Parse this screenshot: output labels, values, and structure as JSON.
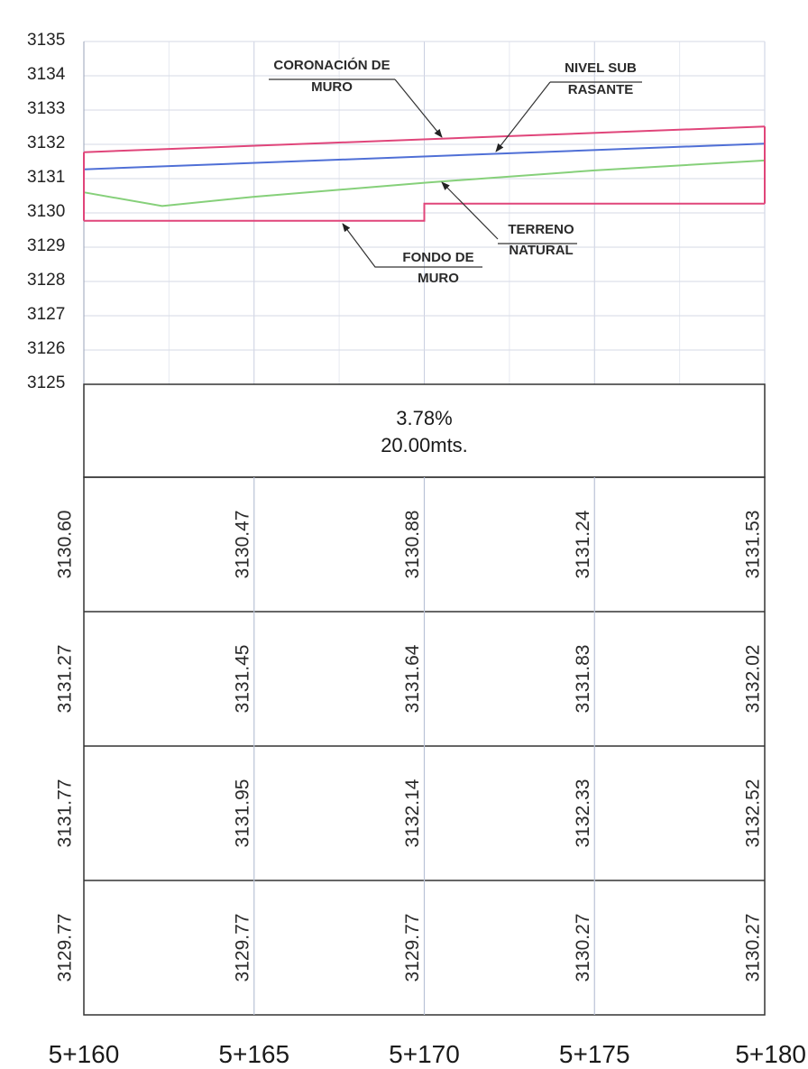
{
  "chart_data": {
    "type": "line",
    "x": [
      5160,
      5165,
      5170,
      5175,
      5180
    ],
    "x_tick_labels": [
      "5+160",
      "5+165",
      "5+170",
      "5+175",
      "5+180"
    ],
    "y_tick_labels": [
      "3135",
      "3134",
      "3133",
      "3132",
      "3131",
      "3130",
      "3129",
      "3128",
      "3127",
      "3126",
      "3125"
    ],
    "ylim": [
      3125,
      3135
    ],
    "xlim": [
      5160,
      5180
    ],
    "grid": true,
    "series": [
      {
        "key": "coronacion",
        "color": "#e0457a",
        "points": [
          [
            5160,
            3131.77
          ],
          [
            5180,
            3132.52
          ]
        ]
      },
      {
        "key": "subrasante",
        "color": "#4f6fd6",
        "points": [
          [
            5160,
            3131.27
          ],
          [
            5180,
            3132.02
          ]
        ]
      },
      {
        "key": "terreno",
        "color": "#86d07a",
        "points": [
          [
            5160,
            3130.6
          ],
          [
            5162.3,
            3130.2
          ],
          [
            5165,
            3130.47
          ],
          [
            5170,
            3130.88
          ],
          [
            5175,
            3131.24
          ],
          [
            5180,
            3131.53
          ]
        ]
      },
      {
        "key": "fondo",
        "color": "#e0457a",
        "points": [
          [
            5160,
            3129.77
          ],
          [
            5170,
            3129.77
          ],
          [
            5170,
            3130.27
          ],
          [
            5180,
            3130.27
          ]
        ]
      }
    ],
    "annotations": [
      {
        "lines": [
          "CORONACIÓN DE",
          "MURO"
        ]
      },
      {
        "lines": [
          "NIVEL SUB",
          "RASANTE"
        ]
      },
      {
        "lines": [
          "TERRENO",
          "NATURAL"
        ]
      },
      {
        "lines": [
          "FONDO DE",
          "MURO"
        ]
      }
    ],
    "slope_band": {
      "percent": "3.78%",
      "length": "20.00mts."
    },
    "table_rows": [
      [
        "3130.60",
        "3130.47",
        "3130.88",
        "3131.24",
        "3131.53"
      ],
      [
        "3131.27",
        "3131.45",
        "3131.64",
        "3131.83",
        "3132.02"
      ],
      [
        "3131.77",
        "3131.95",
        "3132.14",
        "3132.33",
        "3132.52"
      ],
      [
        "3129.77",
        "3129.77",
        "3129.77",
        "3130.27",
        "3130.27"
      ]
    ]
  }
}
